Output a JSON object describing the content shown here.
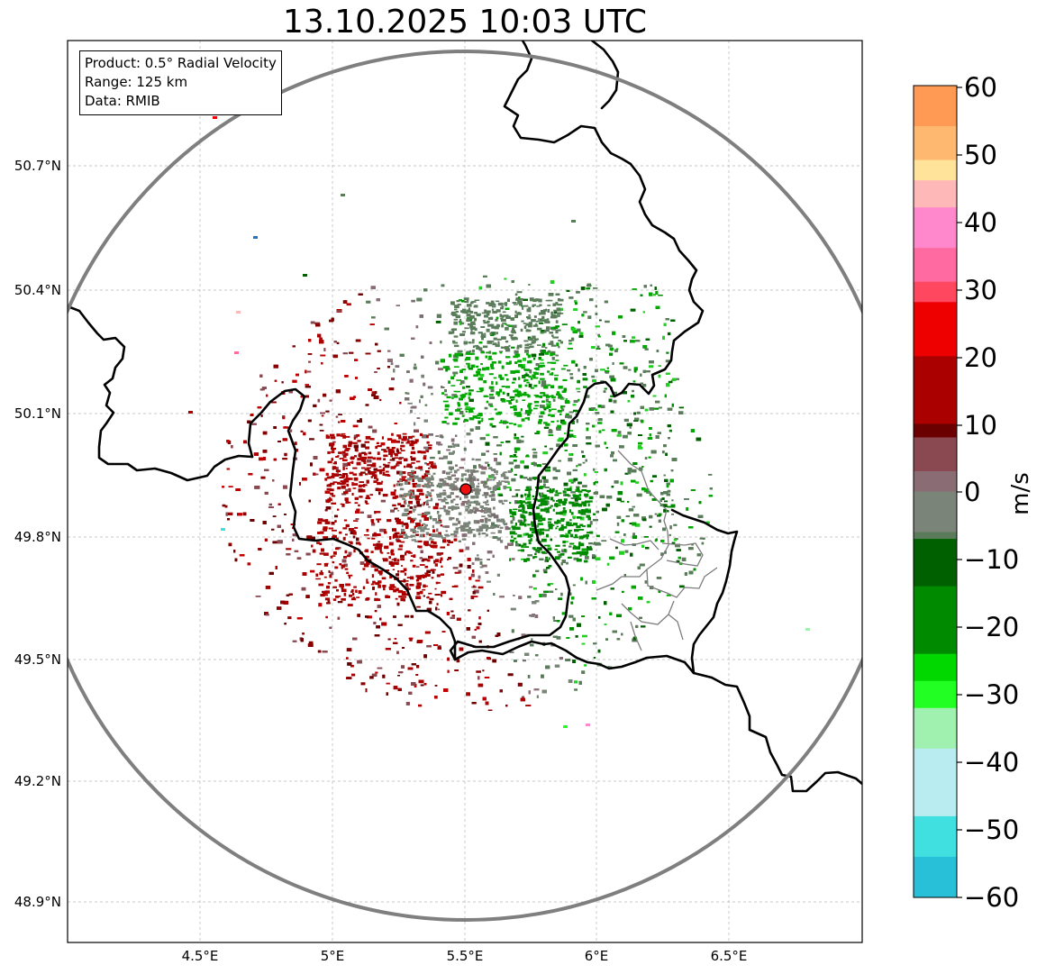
{
  "title": "13.10.2025 10:03 UTC",
  "info": {
    "product": "Product: 0.5° Radial Velocity",
    "range": "Range: 125 km",
    "source": "Data: RMIB"
  },
  "axes": {
    "lat_ticks": [
      "50.7°N",
      "50.4°N",
      "50.1°N",
      "49.8°N",
      "49.5°N",
      "49.2°N",
      "48.9°N"
    ],
    "lon_ticks": [
      "4.5°E",
      "5°E",
      "5.5°E",
      "6°E",
      "6.5°E"
    ]
  },
  "radar_site": {
    "lon": 5.505,
    "lat": 49.914
  },
  "colorbar": {
    "label": "m/s",
    "min": -60,
    "max": 60,
    "tick_labels": [
      "60",
      "50",
      "40",
      "30",
      "20",
      "10",
      "0",
      "−10",
      "−20",
      "−30",
      "−40",
      "−50",
      "−60"
    ],
    "stops": [
      {
        "v": 60,
        "c": "#ff9a55"
      },
      {
        "v": 54,
        "c": "#ffb870"
      },
      {
        "v": 49,
        "c": "#ffe39a"
      },
      {
        "v": 46,
        "c": "#ffb8b8"
      },
      {
        "v": 42,
        "c": "#ff88cc"
      },
      {
        "v": 36,
        "c": "#ff6aa0"
      },
      {
        "v": 31,
        "c": "#ff4860"
      },
      {
        "v": 28,
        "c": "#ee0000"
      },
      {
        "v": 20,
        "c": "#aa0000"
      },
      {
        "v": 10,
        "c": "#6a0000"
      },
      {
        "v": 8,
        "c": "#8a4850"
      },
      {
        "v": 3,
        "c": "#8a6c74"
      },
      {
        "v": 0,
        "c": "#7a8478"
      },
      {
        "v": -6,
        "c": "#5a7c5a"
      },
      {
        "v": -7,
        "c": "#006000"
      },
      {
        "v": -14,
        "c": "#008a00"
      },
      {
        "v": -24,
        "c": "#00d800"
      },
      {
        "v": -28,
        "c": "#22ff22"
      },
      {
        "v": -32,
        "c": "#a0f0b0"
      },
      {
        "v": -38,
        "c": "#b8ecf0"
      },
      {
        "v": -48,
        "c": "#40e0e0"
      },
      {
        "v": -54,
        "c": "#28c0d8"
      },
      {
        "v": -60,
        "c": "#2076c0"
      }
    ]
  }
}
